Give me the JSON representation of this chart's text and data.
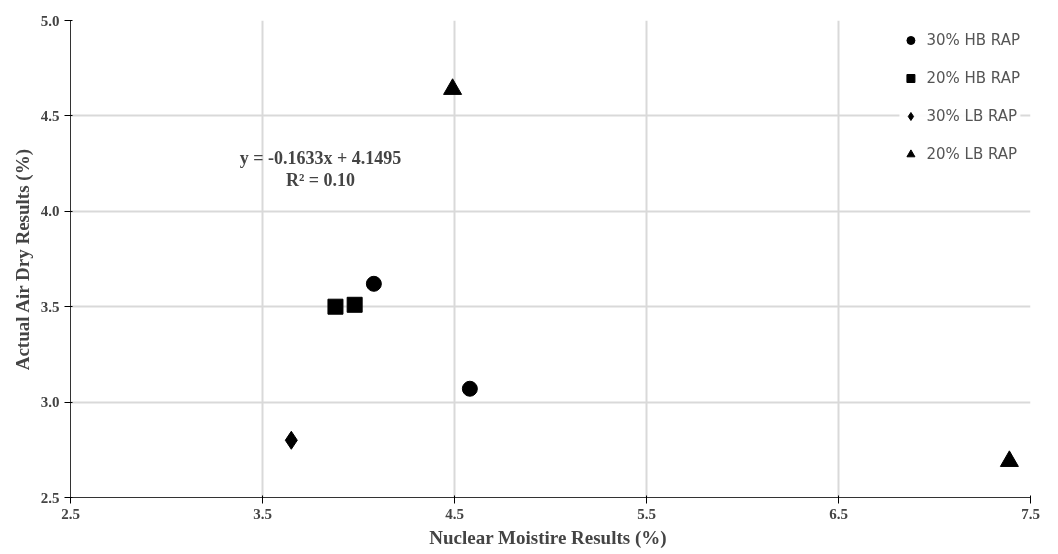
{
  "chart_data": {
    "type": "scatter",
    "xlabel": "Nuclear Moistire  Results (%)",
    "ylabel": "Actual Air Dry Results (%)",
    "xlim": [
      2.5,
      7.5
    ],
    "xticks": [
      2.5,
      3.5,
      4.5,
      5.5,
      6.5,
      7.5
    ],
    "ylim": [
      2.5,
      5.0
    ],
    "yticks": [
      2.5,
      {
        "value": 3,
        "label": "3.0"
      },
      3.5,
      {
        "value": 4,
        "label": "4.0"
      },
      4.5,
      {
        "value": 5,
        "label": "5.0"
      }
    ],
    "grid": true,
    "legend": "top right",
    "annotations": [
      "y = -0.1633x + 4.1495",
      "R² = 0.10"
    ],
    "series": [
      {
        "name": "30% HB RAP",
        "color": "#000000",
        "marker": "circle",
        "x": [
          4.08,
          4.58
        ],
        "values": [
          3.62,
          3.07
        ]
      },
      {
        "name": "20% HB RAP",
        "color": "#000000",
        "marker": "square",
        "x": [
          3.88,
          3.98
        ],
        "values": [
          3.5,
          3.51
        ]
      },
      {
        "name": "30% LB RAP",
        "color": "#000000",
        "marker": "diamond",
        "x": [
          3.65
        ],
        "values": [
          2.8
        ]
      },
      {
        "name": "20% LB RAP",
        "color": "#000000",
        "marker": "triangle",
        "x": [
          4.49,
          7.39
        ],
        "values": [
          4.64,
          2.69
        ]
      }
    ]
  }
}
